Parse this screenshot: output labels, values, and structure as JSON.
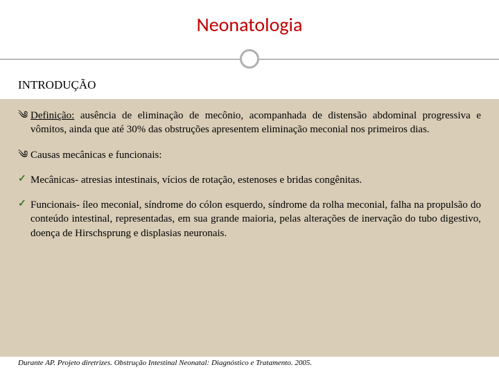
{
  "title": "Neonatologia",
  "subtitle": "INTRODUÇÃO",
  "colors": {
    "title": "#c00000",
    "background_band": "#d9cdb7",
    "check": "#3a7728",
    "divider_line": "#808080",
    "divider_circle": "#b0b0b0"
  },
  "fonts": {
    "title_family": "Calibri",
    "body_family": "Georgia",
    "title_size": 28,
    "subtitle_size": 17,
    "body_size": 15,
    "footer_size": 11
  },
  "items": [
    {
      "bullet": "swirl",
      "lead_underlined": "Definição:",
      "text_rest": " ausência de eliminação de mecônio, acompanhada de distensão abdominal progressiva e vômitos, ainda que até 30% das obstruções apresentem eliminação meconial nos primeiros dias."
    },
    {
      "bullet": "swirl",
      "lead_underlined": "",
      "text_rest": "Causas mecânicas e funcionais:"
    },
    {
      "bullet": "check",
      "lead_underlined": "",
      "text_rest": "Mecânicas- atresias intestinais, vícios de rotação, estenoses e bridas congênitas."
    },
    {
      "bullet": "check",
      "lead_underlined": "",
      "text_rest": "Funcionais- íleo meconial, síndrome do cólon esquerdo, síndrome da rolha meconial, falha na propulsão do conteúdo intestinal, representadas, em sua grande maioria, pelas alterações de inervação do tubo digestivo, doença de Hirschsprung e displasias neuronais."
    }
  ],
  "footer": "Durante AP. Projeto diretrizes. Obstrução Intestinal Neonatal: Diagnóstico e Tratamento. 2005."
}
